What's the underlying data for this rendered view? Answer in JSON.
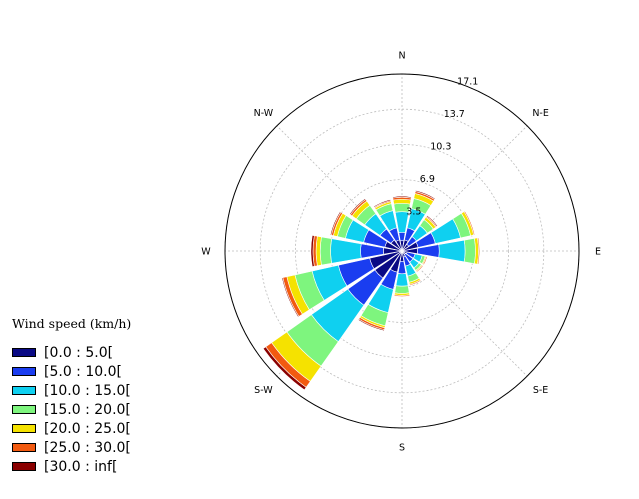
{
  "chart_data": {
    "type": "windrose",
    "directions": [
      "N",
      "N-E",
      "E",
      "S-E",
      "S",
      "S-W",
      "W",
      "N-W"
    ],
    "rlabels": [
      "3.5",
      "6.9",
      "10.3",
      "13.7",
      "17.1"
    ],
    "rmax": 17.1,
    "legend_title": "Wind speed (km/h)",
    "bins": [
      {
        "label": "[0.0 : 5.0[",
        "color": "#0a0a85"
      },
      {
        "label": "[5.0 : 10.0[",
        "color": "#1a3df0"
      },
      {
        "label": "[10.0 : 15.0[",
        "color": "#0fd0f0"
      },
      {
        "label": "[15.0 : 20.0[",
        "color": "#7ef57e"
      },
      {
        "label": "[20.0 : 25.0[",
        "color": "#f5e200"
      },
      {
        "label": "[25.0 : 30.0[",
        "color": "#f25a10"
      },
      {
        "label": "[30.0 : inf[",
        "color": "#8a0000"
      }
    ],
    "sectors": [
      {
        "angle": 0,
        "cum": [
          1.0,
          1.8,
          3.8,
          4.6,
          5.0,
          5.2,
          5.3
        ]
      },
      {
        "angle": 22.5,
        "cum": [
          1.1,
          2.3,
          4.2,
          5.2,
          5.7,
          5.9,
          6.0
        ]
      },
      {
        "angle": 45,
        "cum": [
          0.8,
          1.7,
          3.0,
          3.7,
          4.0,
          4.1,
          4.2
        ]
      },
      {
        "angle": 67.5,
        "cum": [
          1.6,
          3.3,
          5.8,
          6.8,
          7.1,
          7.2,
          7.2
        ]
      },
      {
        "angle": 90,
        "cum": [
          1.5,
          3.6,
          6.1,
          7.1,
          7.4,
          7.5,
          7.5
        ]
      },
      {
        "angle": 112.5,
        "cum": [
          0.5,
          1.3,
          2.0,
          2.3,
          2.4,
          2.5,
          2.5
        ]
      },
      {
        "angle": 135,
        "cum": [
          0.4,
          1.3,
          2.0,
          2.3,
          2.4,
          2.5,
          2.5
        ]
      },
      {
        "angle": 157.5,
        "cum": [
          0.6,
          1.5,
          2.5,
          3.1,
          3.3,
          3.4,
          3.4
        ]
      },
      {
        "angle": 180,
        "cum": [
          1.0,
          2.2,
          3.4,
          4.1,
          4.3,
          4.4,
          4.4
        ]
      },
      {
        "angle": 202.5,
        "cum": [
          2.1,
          3.8,
          6.1,
          7.4,
          7.6,
          7.8,
          7.9
        ]
      },
      {
        "angle": 225,
        "cum": [
          3.2,
          6.4,
          10.7,
          13.6,
          15.4,
          16.1,
          16.4
        ]
      },
      {
        "angle": 247.5,
        "cum": [
          3.2,
          6.3,
          8.9,
          10.6,
          11.4,
          11.8,
          11.9
        ]
      },
      {
        "angle": 270,
        "cum": [
          1.8,
          4.0,
          6.9,
          7.9,
          8.3,
          8.6,
          8.8
        ]
      },
      {
        "angle": 292.5,
        "cum": [
          1.7,
          3.8,
          5.6,
          6.4,
          6.8,
          7.0,
          7.1
        ]
      },
      {
        "angle": 315,
        "cum": [
          1.3,
          2.6,
          4.4,
          5.4,
          5.9,
          6.1,
          6.2
        ]
      },
      {
        "angle": 337.5,
        "cum": [
          1.1,
          2.3,
          4.0,
          4.7,
          4.9,
          5.0,
          5.1
        ]
      }
    ]
  }
}
